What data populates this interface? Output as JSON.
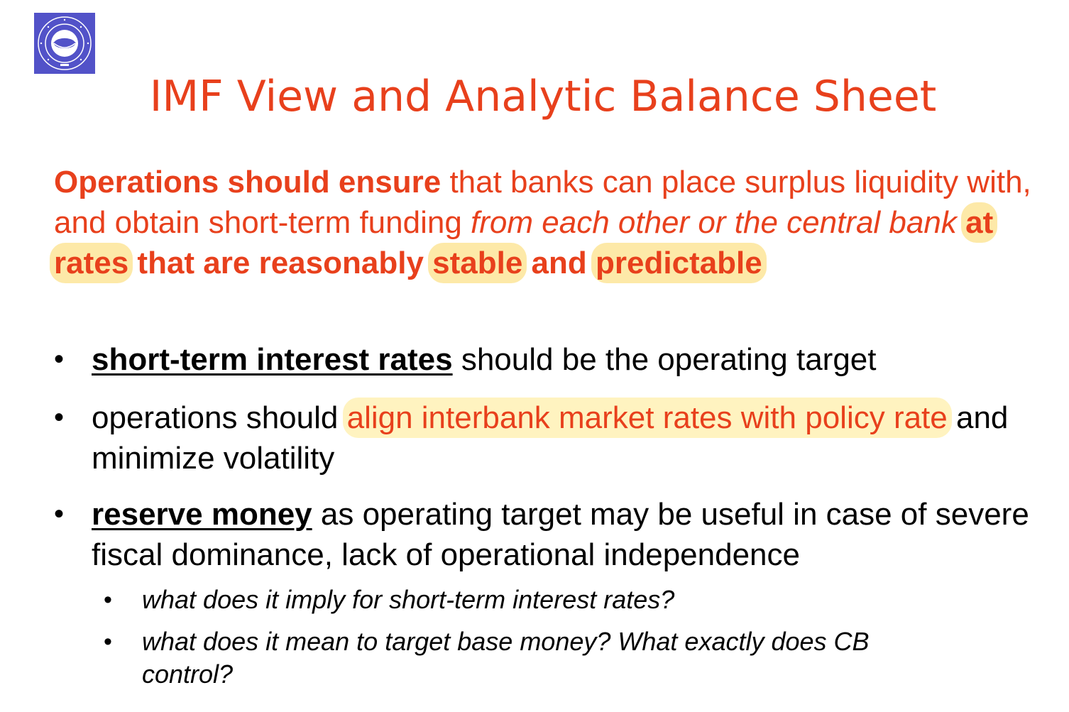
{
  "logo": {
    "name": "university-seal",
    "lettering": "BOĞAZİÇİ ÜNİVERSİTESİ 1863",
    "color": "#5252c8"
  },
  "title": "IMF View and Analytic Balance Sheet",
  "intro": {
    "p1_bold": "Operations should ensure",
    "p2": " that banks can place surplus liquidity with, and obtain short-term funding ",
    "p3_italic": "from each other or the central bank",
    "p4_space": " ",
    "p5_hl": "at rates",
    "p6": " that are reasonably ",
    "p7_hl": "stable",
    "p8": " and ",
    "p9_hl": "predictable"
  },
  "bullets": [
    {
      "marker": "•",
      "underlined": "short-term interest rates",
      "rest": " should be the operating target"
    },
    {
      "marker": "•",
      "pre": "operations should ",
      "highlight": "align interbank market rates with policy rate",
      "rest": " and minimize volatility"
    },
    {
      "marker": "•",
      "underlined": "reserve money",
      "rest": " as operating target may be useful in case of severe fiscal dominance, lack of operational independence",
      "sub": [
        {
          "marker": "•",
          "text": "what does it imply for short-term interest rates?"
        },
        {
          "marker": "•",
          "text": "what does it mean to target base money? What exactly does CB control?"
        }
      ]
    }
  ],
  "colors": {
    "accent": "#e8401c",
    "highlight": "#fff3c0",
    "highlight_strong": "#fde9a8",
    "text": "#000000"
  }
}
